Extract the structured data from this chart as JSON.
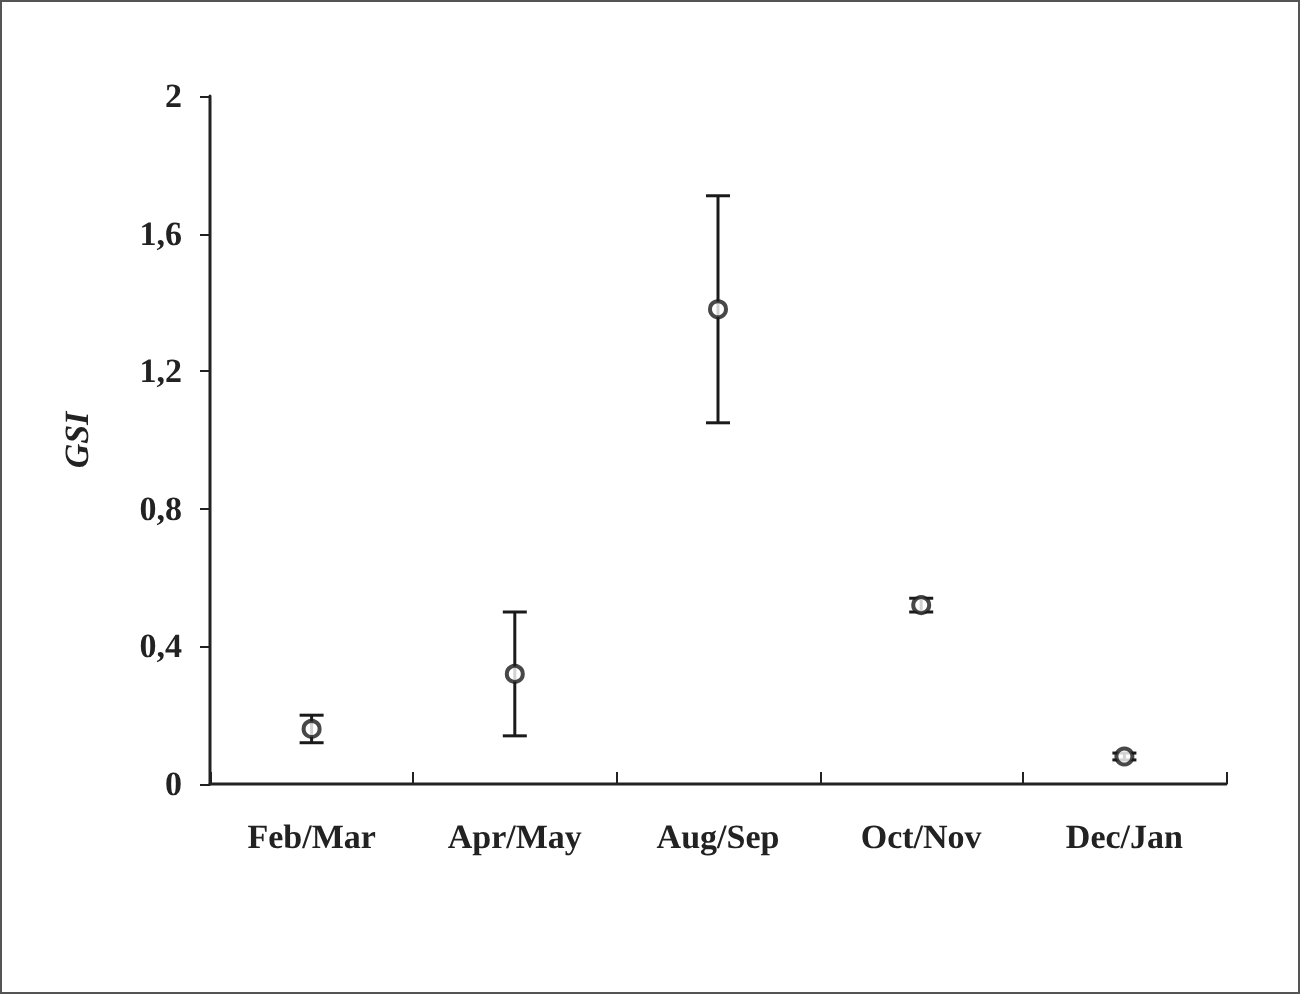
{
  "chart_data": {
    "type": "scatter",
    "ylabel": "GSI",
    "categories": [
      "Feb/Mar",
      "Apr/May",
      "Aug/Sep",
      "Oct/Nov",
      "Dec/Jan"
    ],
    "values": [
      0.16,
      0.32,
      1.38,
      0.52,
      0.08
    ],
    "errors": [
      0.04,
      0.18,
      0.33,
      0.02,
      0.01
    ],
    "color": "#1a1a1a",
    "marker": "circle",
    "ylim": [
      0,
      2
    ],
    "yticks": [
      0,
      {
        "value": 0.4,
        "label": "0,4"
      },
      {
        "value": 0.8,
        "label": "0,8"
      },
      {
        "value": 1.2,
        "label": "1,2"
      },
      {
        "value": 1.6,
        "label": "1,6"
      },
      2
    ],
    "grid": false
  }
}
